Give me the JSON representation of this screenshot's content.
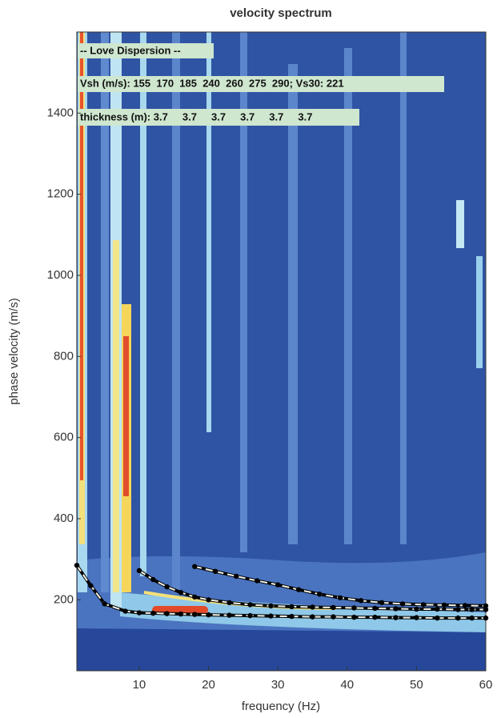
{
  "chart_data": {
    "type": "line",
    "title": "velocity spectrum",
    "x_label": "frequency (Hz)",
    "y_label": "phase velocity (m/s)",
    "annotations": [
      "-- Love Dispersion --",
      "Vsh (m/s): 155  170  185  240  260  275  290; Vs30: 221",
      "thickness (m): 3.7     3.7     3.7     3.7     3.7     3.7"
    ],
    "xlim": [
      1,
      60
    ],
    "ylim": [
      25,
      1600
    ],
    "xticks": [
      10,
      20,
      30,
      40,
      50,
      60
    ],
    "yticks": [
      200,
      400,
      600,
      800,
      1000,
      1200,
      1400
    ],
    "series": [
      {
        "color": "#000000",
        "x": [
          1,
          3,
          5,
          8,
          10,
          12,
          14,
          16,
          18,
          20,
          23,
          26,
          29,
          32,
          35,
          38,
          41,
          44,
          47,
          50,
          53,
          56,
          58,
          60
        ],
        "values": [
          285,
          235,
          190,
          172,
          168,
          167,
          166,
          165,
          164,
          163,
          162,
          161,
          160,
          159,
          158,
          158,
          157,
          157,
          156,
          156,
          155,
          155,
          155,
          155
        ]
      },
      {
        "color": "#000000",
        "x": [
          10,
          12,
          14,
          16,
          18,
          20,
          23,
          26,
          29,
          32,
          35,
          38,
          41,
          44,
          47,
          50,
          53,
          56,
          58,
          60
        ],
        "values": [
          272,
          250,
          232,
          218,
          207,
          200,
          193,
          188,
          185,
          183,
          182,
          181,
          180,
          179,
          178,
          177,
          177,
          176,
          176,
          176
        ]
      },
      {
        "color": "#000000",
        "x": [
          18,
          21,
          24,
          27,
          30,
          33,
          36,
          39,
          42,
          45,
          48,
          51,
          54,
          57,
          60
        ],
        "values": [
          282,
          270,
          258,
          247,
          237,
          225,
          214,
          205,
          198,
          193,
          190,
          188,
          187,
          186,
          185
        ]
      }
    ]
  }
}
